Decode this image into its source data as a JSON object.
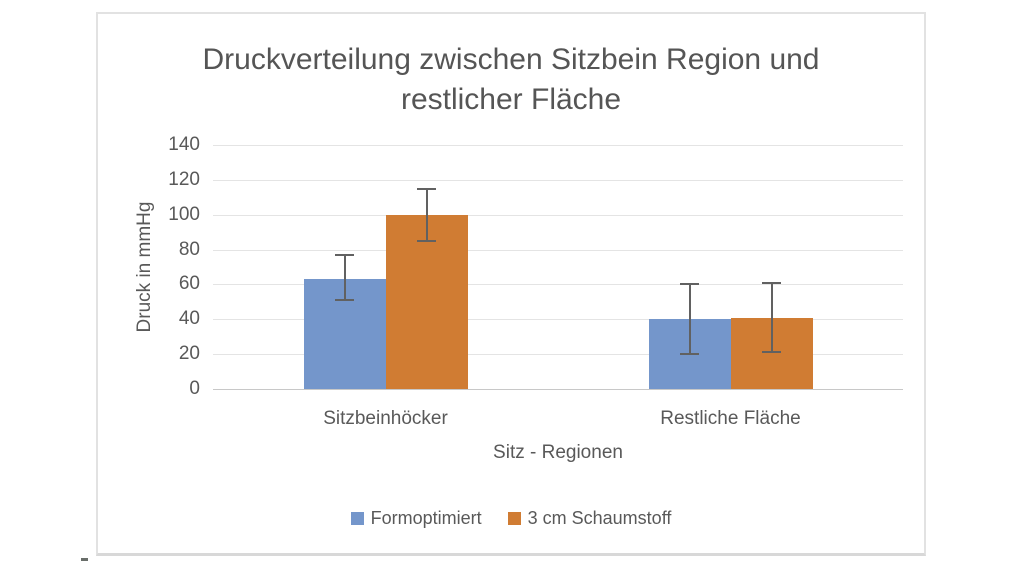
{
  "title": {
    "lines": [
      "Druckverteilung zwischen Sitzbein Region und",
      "restlicher Fläche"
    ]
  },
  "chart_data": {
    "type": "bar",
    "title": "Druckverteilung zwischen Sitzbein Region und restlicher Fläche",
    "categories": [
      "Sitzbeinhöcker",
      "Restliche Fläche"
    ],
    "series": [
      {
        "name": "Formoptimiert",
        "color": "#7496CB",
        "values": [
          63,
          40
        ],
        "error_low": [
          51,
          20
        ],
        "error_high": [
          77,
          60
        ]
      },
      {
        "name": "3 cm Schaumstoff",
        "color": "#D07C33",
        "values": [
          100,
          41
        ],
        "error_low": [
          85,
          21
        ],
        "error_high": [
          115,
          61
        ]
      }
    ],
    "xlabel": "Sitz - Regionen",
    "ylabel": "Druck in mmHg",
    "ylim": [
      0,
      140
    ],
    "yticks": [
      0,
      20,
      40,
      60,
      80,
      100,
      120,
      140
    ],
    "grid": true,
    "legend_position": "bottom",
    "colors": {
      "text": "#595959",
      "gridline": "#e4e4e4",
      "axis_line": "#c8c8c8",
      "error_bar": "#616161"
    }
  }
}
